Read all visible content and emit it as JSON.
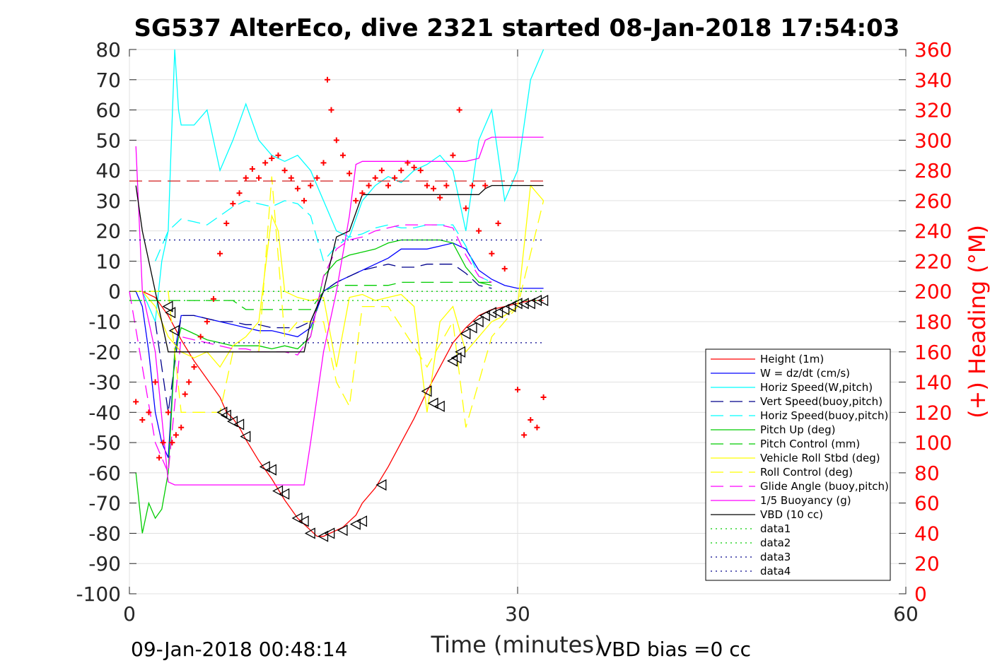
{
  "chart_data": {
    "type": "line",
    "title": "SG537 AlterEco, dive 2321 started 08-Jan-2018 17:54:03",
    "xlabel": "Time (minutes)",
    "ylabel": "",
    "y2label": "(+) Heading (°M)",
    "xlim": [
      0,
      60
    ],
    "ylim": [
      -100,
      80
    ],
    "y2lim": [
      0,
      360
    ],
    "xticks": [
      "0",
      "30",
      "60"
    ],
    "yticks": [
      "80",
      "70",
      "60",
      "50",
      "40",
      "30",
      "20",
      "10",
      "0",
      "-10",
      "-20",
      "-30",
      "-40",
      "-50",
      "-60",
      "-70",
      "-80",
      "-90",
      "-100"
    ],
    "y2ticks": [
      "360",
      "340",
      "320",
      "300",
      "280",
      "260",
      "240",
      "220",
      "200",
      "180",
      "160",
      "140",
      "120",
      "100",
      "80",
      "60",
      "40",
      "20",
      "0"
    ],
    "grid": true,
    "legend_position": "bottom-right",
    "footer_left": "09-Jan-2018 00:48:14",
    "footer_right": "VBD bias =0 cc",
    "series": [
      {
        "name": "Height (1m)",
        "color": "#ff0000",
        "style": "solid",
        "x": [
          0,
          1,
          2,
          2.5,
          3,
          3.5,
          4,
          5,
          6,
          7,
          7.5,
          8,
          8.5,
          9,
          10,
          11,
          12,
          13,
          13.5,
          14,
          14.5,
          15,
          15.5,
          16,
          16.5,
          17,
          17.5,
          18,
          19,
          20,
          21,
          22,
          23,
          24,
          25,
          26,
          27,
          28,
          29,
          30,
          31,
          32
        ],
        "y": [
          0,
          0,
          -2,
          -5,
          -8,
          -12,
          -16,
          -23,
          -29,
          -35,
          -40,
          -42,
          -45,
          -49,
          -56,
          -62,
          -69,
          -75,
          -77,
          -79,
          -81,
          -81,
          -80,
          -79,
          -78,
          -76,
          -74,
          -70,
          -65,
          -58,
          -50,
          -42,
          -33,
          -25,
          -17,
          -12,
          -8,
          -6,
          -5,
          -4,
          -3,
          -3
        ]
      },
      {
        "name": "W = dz/dt (cm/s)",
        "color": "#0000ff",
        "style": "solid",
        "x": [
          0,
          0.5,
          1,
          1.5,
          2,
          2.5,
          3,
          3.5,
          4,
          5,
          6,
          7,
          8,
          9,
          10,
          11,
          12,
          13,
          14,
          15,
          16,
          17,
          18,
          19,
          20,
          21,
          22,
          23,
          24,
          25,
          26,
          27,
          28,
          29,
          30,
          31,
          32
        ],
        "y": [
          0,
          0,
          -5,
          -20,
          -40,
          -50,
          -55,
          -20,
          -8,
          -8,
          -9,
          -10,
          -11,
          -12,
          -13,
          -13,
          -14,
          -15,
          -12,
          0,
          3,
          5,
          7,
          9,
          11,
          14,
          14,
          14,
          15,
          16,
          14,
          7,
          4,
          2,
          1,
          1,
          1
        ]
      },
      {
        "name": "Horiz Speed(W,pitch)",
        "color": "#00ffff",
        "style": "solid",
        "x": [
          0,
          1,
          2,
          2.5,
          3,
          3.2,
          3.5,
          3.8,
          4,
          5,
          6,
          6.5,
          7,
          8,
          9,
          10,
          11,
          12,
          13,
          14,
          15,
          16,
          17,
          18,
          19,
          20,
          21,
          22,
          23,
          24,
          25,
          26,
          27,
          28,
          29,
          30,
          31,
          32
        ],
        "y": [
          0,
          0,
          -10,
          10,
          20,
          45,
          80,
          60,
          55,
          55,
          60,
          50,
          40,
          50,
          62,
          50,
          45,
          43,
          45,
          40,
          30,
          20,
          18,
          30,
          35,
          38,
          36,
          40,
          42,
          45,
          40,
          20,
          50,
          60,
          30,
          40,
          70,
          80
        ]
      },
      {
        "name": "Vert Speed(buoy,pitch)",
        "color": "#00008b",
        "style": "dash",
        "x": [
          2,
          3,
          4,
          5,
          6,
          7,
          8,
          9,
          10,
          11,
          12,
          13,
          14,
          15,
          16,
          17,
          18,
          19,
          20,
          21,
          22,
          23,
          24,
          25,
          26,
          27,
          28
        ],
        "y": [
          -10,
          -40,
          -8,
          -8,
          -9,
          -10,
          -10,
          -11,
          -11,
          -12,
          -12,
          -12,
          -10,
          0,
          3,
          5,
          7,
          8,
          9,
          8,
          8,
          9,
          9,
          9,
          6,
          2,
          1
        ]
      },
      {
        "name": "Horiz Speed(buoy,pitch)",
        "color": "#00ffff",
        "style": "dash",
        "x": [
          2,
          3,
          4,
          5,
          6,
          7,
          8,
          9,
          10,
          11,
          12,
          13,
          14,
          15,
          16,
          17,
          18,
          19,
          20,
          21,
          22,
          23,
          24,
          25,
          26,
          27,
          28
        ],
        "y": [
          10,
          20,
          24,
          23,
          22,
          25,
          28,
          30,
          29,
          28,
          30,
          29,
          25,
          10,
          15,
          18,
          19,
          21,
          22,
          21,
          21,
          22,
          22,
          22,
          15,
          5,
          3
        ]
      },
      {
        "name": "Pitch Up (deg)",
        "color": "#00cc00",
        "style": "solid",
        "x": [
          0.5,
          1,
          1.5,
          2,
          2.5,
          3,
          3.5,
          4,
          5,
          6,
          7,
          8,
          9,
          10,
          11,
          12,
          13,
          14,
          15,
          16,
          17,
          18,
          19,
          20,
          21,
          22,
          23,
          24,
          25,
          26,
          27,
          28
        ],
        "y": [
          -60,
          -80,
          -70,
          -75,
          -72,
          -60,
          -20,
          -12,
          -14,
          -16,
          -17,
          -18,
          -18,
          -18,
          -19,
          -18,
          -19,
          -15,
          5,
          10,
          12,
          13,
          14,
          16,
          17,
          17,
          17,
          17,
          16,
          8,
          3,
          2
        ]
      },
      {
        "name": "Pitch Control (mm)",
        "color": "#00cc00",
        "style": "dash",
        "x": [
          0,
          3,
          4,
          8,
          9,
          13,
          14,
          15,
          16,
          20,
          21,
          25,
          26,
          28
        ],
        "y": [
          -3,
          -3,
          -3,
          -3,
          -6,
          -6,
          -6,
          0,
          2,
          2,
          3,
          3,
          3,
          3
        ]
      },
      {
        "name": "Vehicle Roll Stbd (deg)",
        "color": "#ffff00",
        "style": "solid",
        "x": [
          0,
          1,
          2,
          3,
          4,
          5,
          6,
          7,
          8,
          9,
          10,
          11,
          11.5,
          12,
          13,
          14,
          15,
          16,
          17,
          18,
          19,
          20,
          21,
          22,
          23,
          24,
          25,
          26,
          27,
          28,
          29,
          30,
          31,
          32
        ],
        "y": [
          0,
          0,
          -5,
          -15,
          -20,
          -22,
          -20,
          -25,
          -18,
          -15,
          -10,
          25,
          20,
          0,
          -2,
          -3,
          -2,
          -25,
          -2,
          -1,
          -3,
          -2,
          -1,
          -5,
          -40,
          -10,
          -5,
          -20,
          -15,
          -10,
          -8,
          -5,
          35,
          30
        ]
      },
      {
        "name": "Roll Control (deg)",
        "color": "#ffff00",
        "style": "dash",
        "x": [
          0,
          3,
          4,
          7,
          8,
          10,
          11,
          12,
          13,
          15,
          16,
          17,
          18,
          20,
          23,
          25,
          26,
          28,
          30,
          32
        ],
        "y": [
          0,
          0,
          -40,
          -40,
          -20,
          -20,
          38,
          -15,
          -10,
          -10,
          -30,
          -38,
          -5,
          -5,
          -25,
          -10,
          -45,
          -15,
          -5,
          30
        ]
      },
      {
        "name": "Glide Angle (buoy,pitch)",
        "color": "#ff00ff",
        "style": "dash",
        "x": [
          0,
          2,
          3,
          4,
          5,
          6,
          7,
          8,
          9,
          10,
          11,
          12,
          13,
          14,
          15,
          16,
          17,
          18,
          19,
          20,
          21,
          22,
          23,
          24,
          25,
          26,
          27,
          28
        ],
        "y": [
          0,
          -50,
          -60,
          -15,
          -16,
          -17,
          -18,
          -19,
          -19,
          -20,
          -20,
          -20,
          -21,
          -15,
          5,
          14,
          17,
          18,
          20,
          21,
          22,
          22,
          22,
          22,
          21,
          12,
          5,
          3
        ]
      },
      {
        "name": "1/5 Buoyancy (g)",
        "color": "#ff00ff",
        "style": "solid",
        "x": [
          0.5,
          1,
          2,
          3,
          3.5,
          6,
          8,
          10,
          13.5,
          14,
          15,
          16,
          17,
          17.5,
          18,
          20,
          22,
          25,
          26,
          27,
          27.5,
          28,
          30,
          32
        ],
        "y": [
          48,
          0,
          -20,
          -63,
          -64,
          -64,
          -64,
          -64,
          -64,
          -50,
          -20,
          0,
          25,
          42,
          43,
          43,
          43,
          43,
          43,
          44,
          50,
          51,
          51,
          51
        ]
      },
      {
        "name": "VBD (10 cc)",
        "color": "#000000",
        "style": "solid",
        "x": [
          0.5,
          1,
          2,
          3,
          4,
          6,
          8,
          10,
          13.5,
          14,
          15,
          16,
          17,
          18,
          20,
          22,
          25,
          27,
          27.5,
          28,
          30,
          32
        ],
        "y": [
          35,
          20,
          0,
          -20,
          -20,
          -20,
          -20,
          -20,
          -20,
          -10,
          0,
          18,
          20,
          32,
          32,
          32,
          32,
          32,
          34,
          35,
          35,
          35
        ]
      },
      {
        "name": "data1",
        "color": "#00cc00",
        "style": "dot",
        "x": [
          0,
          32
        ],
        "y": [
          0,
          0
        ]
      },
      {
        "name": "data2",
        "color": "#00cc00",
        "style": "dot",
        "x": [
          0,
          32
        ],
        "y": [
          -3,
          -3
        ]
      },
      {
        "name": "data3",
        "color": "#00008b",
        "style": "dot",
        "x": [
          0,
          32
        ],
        "y": [
          -17,
          -17
        ]
      },
      {
        "name": "data4",
        "color": "#00008b",
        "style": "dot",
        "x": [
          0,
          32
        ],
        "y": [
          17,
          17
        ]
      }
    ],
    "heading_reference": {
      "color": "#cc0000",
      "style": "dash",
      "value": 273
    },
    "heading_points": {
      "color": "#ff0000",
      "axis": "right",
      "x": [
        0.5,
        1,
        1.5,
        2,
        2.3,
        2.6,
        3,
        3.3,
        3.6,
        4,
        4.3,
        4.6,
        5,
        5.5,
        6,
        6.5,
        7,
        7.5,
        8,
        8.5,
        9,
        9.5,
        10,
        10.5,
        11,
        11.5,
        12,
        12.5,
        13,
        13.5,
        14,
        14.5,
        15,
        15.3,
        15.6,
        16,
        16.5,
        17,
        17.5,
        18,
        18.5,
        19,
        19.5,
        20,
        20.5,
        21,
        21.5,
        22,
        22.5,
        23,
        23.5,
        24,
        24.5,
        25,
        25.5,
        26,
        26.5,
        27,
        27.5,
        28,
        28.5,
        29,
        30,
        30.5,
        31,
        31.5,
        32
      ],
      "y": [
        127,
        115,
        120,
        140,
        90,
        100,
        120,
        100,
        105,
        110,
        132,
        140,
        150,
        170,
        180,
        195,
        225,
        245,
        258,
        265,
        275,
        281,
        275,
        285,
        288,
        290,
        280,
        275,
        268,
        260,
        270,
        275,
        285,
        340,
        320,
        300,
        290,
        278,
        260,
        265,
        270,
        275,
        280,
        270,
        275,
        280,
        285,
        282,
        280,
        270,
        268,
        262,
        270,
        290,
        320,
        255,
        270,
        240,
        270,
        225,
        245,
        215,
        135,
        105,
        115,
        110,
        130
      ]
    },
    "dive_markers": {
      "color": "#000000",
      "shape": "triangle",
      "axis": "left",
      "x": [
        3,
        3.2,
        3.5,
        7.2,
        7.5,
        8,
        8.5,
        9,
        10.5,
        11,
        11.5,
        12,
        13,
        13.5,
        14,
        15,
        15.5,
        16.5,
        17.5,
        18,
        19.5,
        23,
        23.5,
        24,
        25,
        25.3,
        25.6,
        26,
        26.5,
        27,
        27.5,
        28,
        28.5,
        29,
        29.5,
        30,
        30.5,
        31,
        31.5,
        32
      ],
      "y": [
        -5,
        -7,
        -13,
        -40,
        -41,
        -43,
        -44,
        -48,
        -58,
        -59,
        -66,
        -67,
        -75,
        -76,
        -80,
        -81,
        -80,
        -79,
        -77,
        -76,
        -64,
        -33,
        -37,
        -38,
        -23,
        -22,
        -20,
        -14,
        -12,
        -10,
        -8,
        -7,
        -7,
        -6,
        -5,
        -4,
        -4,
        -4,
        -3,
        -3
      ]
    }
  }
}
